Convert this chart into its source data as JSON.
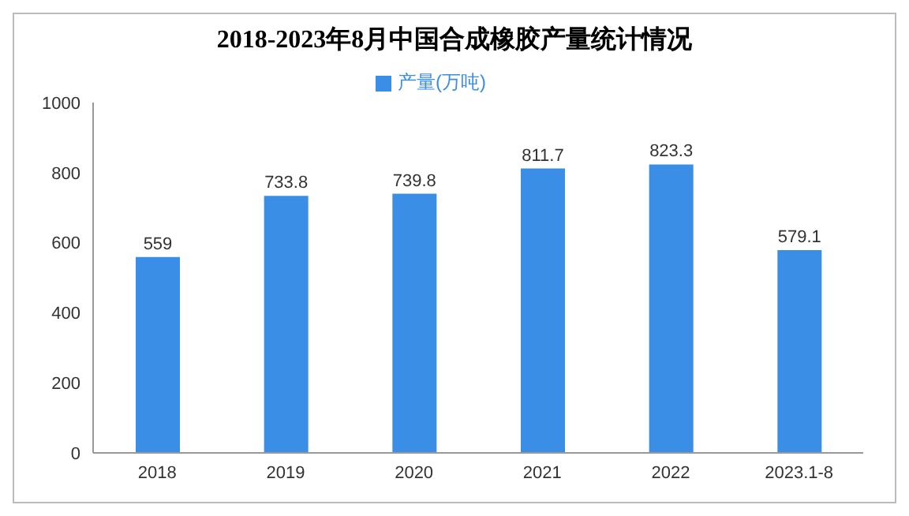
{
  "chart_data": {
    "type": "bar",
    "title": "2018-2023年8月中国合成橡胶产量统计情况",
    "categories": [
      "2018",
      "2019",
      "2020",
      "2021",
      "2022",
      "2023.1-8"
    ],
    "series": [
      {
        "name": "产量(万吨)",
        "color": "#3a8ee6",
        "values": [
          559,
          733.8,
          739.8,
          811.7,
          823.3,
          579.1
        ]
      }
    ],
    "ylim": [
      0,
      1000
    ],
    "yticks": [
      0,
      200,
      400,
      600,
      800,
      1000
    ],
    "grid": false,
    "legend": "top",
    "data_labels": true
  }
}
